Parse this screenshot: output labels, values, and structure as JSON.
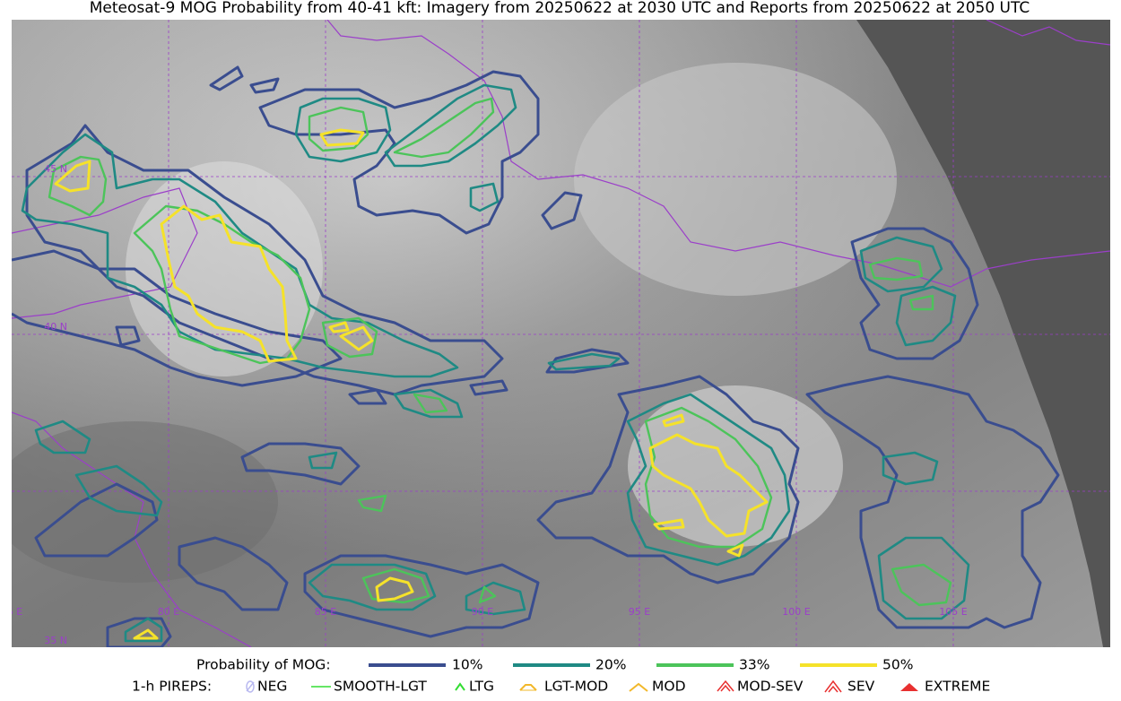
{
  "title": "Meteosat-9 MOG Probability from 40-41 kft: Imagery from 20250622 at 2030 UTC and Reports from 20250622 at 2050 UTC",
  "map": {
    "lon_labels": [
      "75 E",
      "80 E",
      "85 E",
      "90 E",
      "95 E",
      "100 E",
      "105 E"
    ],
    "lat_labels": [
      "45 N",
      "40 N",
      "35 N"
    ]
  },
  "legend": {
    "probability": {
      "label": "Probability of MOG:",
      "items": [
        "10%",
        "20%",
        "33%",
        "50%"
      ]
    },
    "pireps": {
      "label": "1-h PIREPS:",
      "items": [
        "NEG",
        "SMOOTH-LGT",
        "LTG",
        "LGT-MOD",
        "MOD",
        "MOD-SEV",
        "SEV",
        "EXTREME"
      ]
    }
  }
}
